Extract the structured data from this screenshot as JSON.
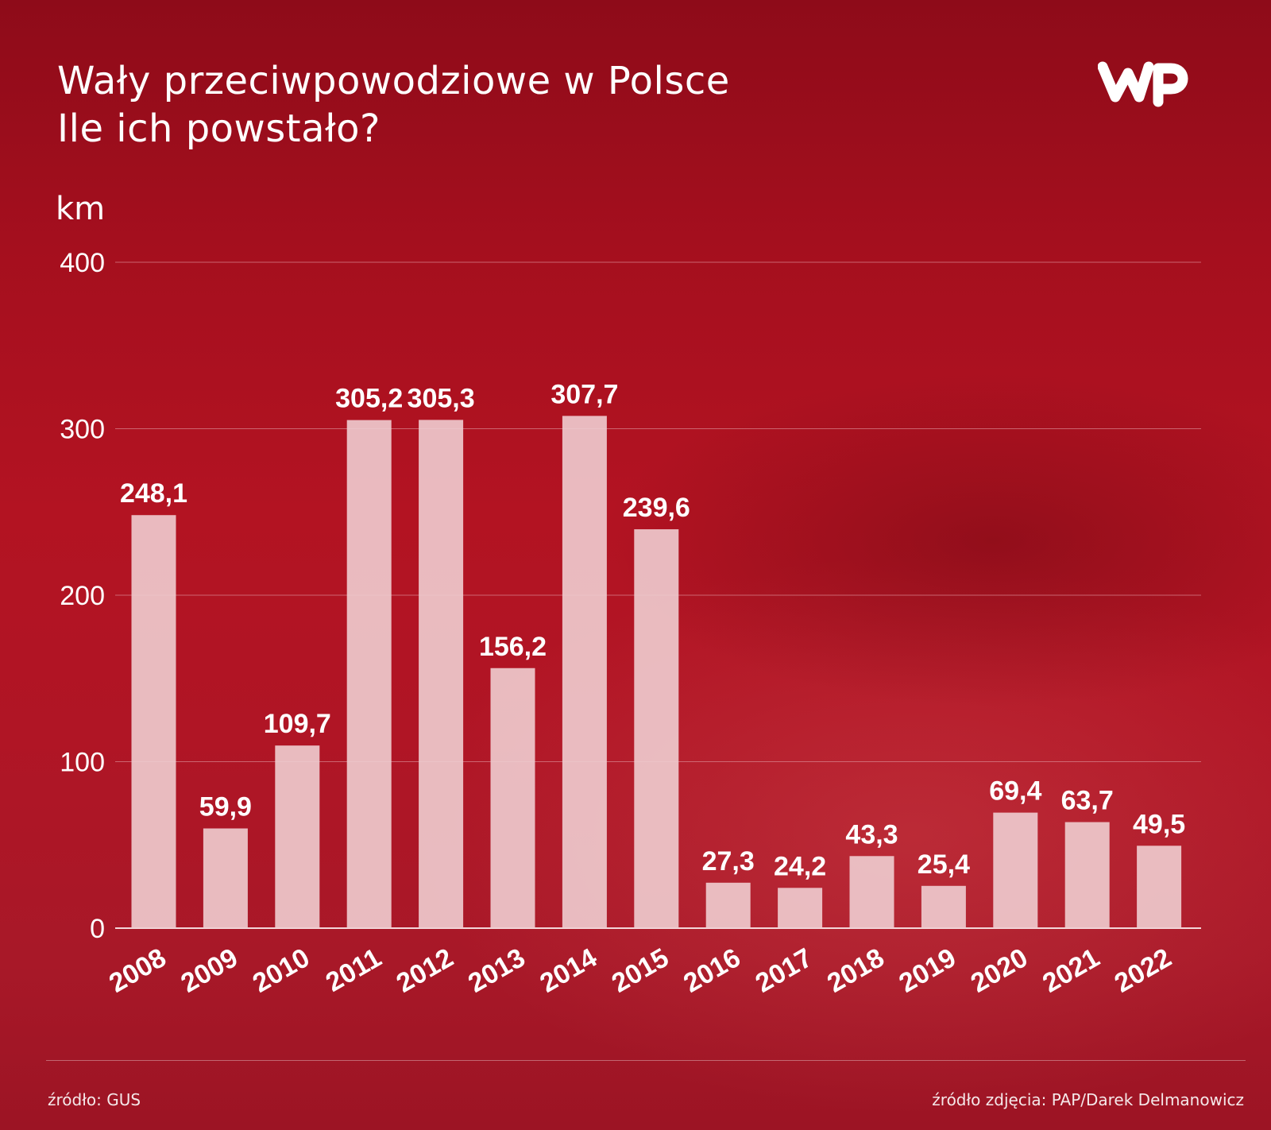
{
  "header": {
    "title_line1": "Wały przeciwpowodziowe w Polsce",
    "title_line2": "Ile ich powstało?",
    "logo_text": "WP"
  },
  "footer": {
    "source": "źródło: GUS",
    "photo_source": "źródło zdjęcia: PAP/Darek Delmanowicz"
  },
  "colors": {
    "background": "#a8101f",
    "bar": "#efcdd0",
    "text": "#ffffff",
    "gridline": "#d8808a"
  },
  "chart_data": {
    "type": "bar",
    "title": "",
    "ylabel": "km",
    "xlabel": "",
    "ylim": [
      0,
      400
    ],
    "yticks": [
      0,
      100,
      200,
      300,
      400
    ],
    "grid": true,
    "categories": [
      "2008",
      "2009",
      "2010",
      "2011",
      "2012",
      "2013",
      "2014",
      "2015",
      "2016",
      "2017",
      "2018",
      "2019",
      "2020",
      "2021",
      "2022"
    ],
    "values": [
      248.1,
      59.9,
      109.7,
      305.2,
      305.3,
      156.2,
      307.7,
      239.6,
      27.3,
      24.2,
      43.3,
      25.4,
      69.4,
      63.7,
      49.5
    ],
    "value_labels": [
      "248,1",
      "59,9",
      "109,7",
      "305,2",
      "305,3",
      "156,2",
      "307,7",
      "239,6",
      "27,3",
      "24,2",
      "43,3",
      "25,4",
      "69,4",
      "63,7",
      "49,5"
    ]
  }
}
